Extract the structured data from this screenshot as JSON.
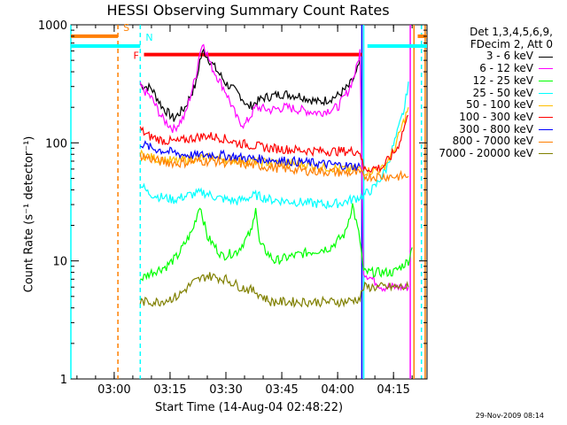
{
  "chart_data": {
    "type": "line",
    "title": "HESSI Observing Summary Count Rates",
    "xlabel": "Start Time (14-Aug-04 02:48:22)",
    "ylabel": "Count Rate (s⁻¹ detector⁻¹)",
    "y_scale": "log",
    "ylim": [
      1,
      1000
    ],
    "y_ticks": [
      "1",
      "10",
      "100",
      "1000"
    ],
    "xlim": [
      "02:48:22",
      "04:24:00"
    ],
    "x_ticks": [
      "03:00",
      "03:15",
      "03:30",
      "03:45",
      "04:00",
      "04:15"
    ],
    "legend_header": [
      "Det 1,3,4,5,6,9,",
      "FDecim 2, Att 0"
    ],
    "legend_position": "right",
    "timestamp": "29-Nov-2009 08:14",
    "flags": [
      {
        "label": "S",
        "color": "#ff7f00",
        "segments": [
          [
            "02:48:22",
            "03:01:00"
          ],
          [
            "04:21:30",
            "04:24:00"
          ]
        ],
        "y": 800
      },
      {
        "label": "N",
        "color": "#00ffff",
        "segments": [
          [
            "02:48:22",
            "03:07:00"
          ],
          [
            "04:08:00",
            "04:24:00"
          ]
        ],
        "y": 660
      },
      {
        "label": "F",
        "color": "#ff0000",
        "segments": [
          [
            "03:08:00",
            "04:06:30"
          ]
        ],
        "y": 560
      }
    ],
    "vlines": [
      {
        "t": "02:48:22",
        "color": "#00ffff",
        "style": "solid"
      },
      {
        "t": "03:01:00",
        "color": "#ff7f00",
        "style": "dashed"
      },
      {
        "t": "03:07:00",
        "color": "#00ffff",
        "style": "dashed"
      },
      {
        "t": "04:06:30",
        "color": "#0000ff",
        "style": "solid"
      },
      {
        "t": "04:07:00",
        "color": "#00ffff",
        "style": "solid"
      },
      {
        "t": "04:19:30",
        "color": "#ff00ff",
        "style": "solid"
      },
      {
        "t": "04:20:30",
        "color": "#ff7f00",
        "style": "solid"
      },
      {
        "t": "04:22:30",
        "color": "#00ffff",
        "style": "dashed"
      },
      {
        "t": "04:23:30",
        "color": "#ff7f00",
        "style": "solid"
      }
    ],
    "series": [
      {
        "name": "3 - 6 keV",
        "color": "#000000",
        "points": [
          [
            "03:07",
            "310"
          ],
          [
            "03:10",
            "290"
          ],
          [
            "03:13",
            "200"
          ],
          [
            "03:16",
            "160"
          ],
          [
            "03:19",
            "200"
          ],
          [
            "03:22",
            "320"
          ],
          [
            "03:23",
            "500"
          ],
          [
            "03:24",
            "600"
          ],
          [
            "03:26",
            "480"
          ],
          [
            "03:30",
            "320"
          ],
          [
            "03:34",
            "250"
          ],
          [
            "03:36",
            "200"
          ],
          [
            "03:40",
            "240"
          ],
          [
            "03:45",
            "260"
          ],
          [
            "03:50",
            "250"
          ],
          [
            "03:55",
            "220"
          ],
          [
            "04:00",
            "250"
          ],
          [
            "04:03",
            "300"
          ],
          [
            "04:05",
            "380"
          ],
          [
            "04:06",
            "500"
          ]
        ]
      },
      {
        "name": "6 - 12 keV",
        "color": "#ff00ff",
        "points": [
          [
            "03:07",
            "300"
          ],
          [
            "03:10",
            "240"
          ],
          [
            "03:13",
            "160"
          ],
          [
            "03:16",
            "130"
          ],
          [
            "03:19",
            "170"
          ],
          [
            "03:22",
            "380"
          ],
          [
            "03:23",
            "600"
          ],
          [
            "03:24",
            "700"
          ],
          [
            "03:26",
            "450"
          ],
          [
            "03:30",
            "270"
          ],
          [
            "03:33",
            "160"
          ],
          [
            "03:35",
            "140"
          ],
          [
            "03:38",
            "200"
          ],
          [
            "03:42",
            "190"
          ],
          [
            "03:46",
            "200"
          ],
          [
            "03:50",
            "190"
          ],
          [
            "03:55",
            "180"
          ],
          [
            "04:00",
            "200"
          ],
          [
            "04:03",
            "280"
          ],
          [
            "04:05",
            "420"
          ],
          [
            "04:06",
            "600"
          ],
          [
            "04:07",
            "8"
          ],
          [
            "04:12",
            "6"
          ],
          [
            "04:19",
            "6"
          ]
        ]
      },
      {
        "name": "12 - 25 keV",
        "color": "#00ff00",
        "points": [
          [
            "03:07",
            "7"
          ],
          [
            "03:10",
            "8"
          ],
          [
            "03:14",
            "9"
          ],
          [
            "03:17",
            "11"
          ],
          [
            "03:21",
            "18"
          ],
          [
            "03:23",
            "30"
          ],
          [
            "03:25",
            "16"
          ],
          [
            "03:29",
            "11"
          ],
          [
            "03:33",
            "12"
          ],
          [
            "03:37",
            "18"
          ],
          [
            "03:38",
            "30"
          ],
          [
            "03:39",
            "14"
          ],
          [
            "03:43",
            "10"
          ],
          [
            "03:48",
            "11"
          ],
          [
            "03:53",
            "12"
          ],
          [
            "03:58",
            "13"
          ],
          [
            "04:02",
            "17"
          ],
          [
            "04:04",
            "30"
          ],
          [
            "04:06",
            "15"
          ],
          [
            "04:07",
            "8"
          ],
          [
            "04:15",
            "8"
          ],
          [
            "04:19",
            "10"
          ],
          [
            "04:20",
            "13"
          ]
        ]
      },
      {
        "name": "25 - 50 keV",
        "color": "#00ffff",
        "points": [
          [
            "03:07",
            "45"
          ],
          [
            "03:09",
            "38"
          ],
          [
            "03:12",
            "35"
          ],
          [
            "03:16",
            "33"
          ],
          [
            "03:20",
            "36"
          ],
          [
            "03:24",
            "38"
          ],
          [
            "03:28",
            "34"
          ],
          [
            "03:33",
            "32"
          ],
          [
            "03:38",
            "36"
          ],
          [
            "03:42",
            "33"
          ],
          [
            "03:47",
            "32"
          ],
          [
            "03:52",
            "31"
          ],
          [
            "03:57",
            "30"
          ],
          [
            "04:01",
            "31"
          ],
          [
            "04:05",
            "34"
          ],
          [
            "04:07",
            "36"
          ],
          [
            "04:10",
            "42"
          ],
          [
            "04:13",
            "60"
          ],
          [
            "04:16",
            "120"
          ],
          [
            "04:18",
            "200"
          ],
          [
            "04:19",
            "330"
          ]
        ]
      },
      {
        "name": "50 - 100 keV",
        "color": "#ffbf00",
        "points": [
          [
            "03:07",
            "80"
          ],
          [
            "03:12",
            "72"
          ],
          [
            "03:17",
            "70"
          ],
          [
            "03:22",
            "74"
          ],
          [
            "03:27",
            "75"
          ],
          [
            "03:32",
            "72"
          ],
          [
            "03:37",
            "70"
          ],
          [
            "03:42",
            "68"
          ],
          [
            "03:47",
            "67"
          ],
          [
            "03:52",
            "65"
          ],
          [
            "03:57",
            "62"
          ],
          [
            "04:02",
            "60"
          ],
          [
            "04:06",
            "60"
          ],
          [
            "04:07",
            "57"
          ],
          [
            "04:12",
            "60"
          ],
          [
            "04:15",
            "85"
          ],
          [
            "04:18",
            "160"
          ],
          [
            "04:19",
            "200"
          ]
        ]
      },
      {
        "name": "100 - 300 keV",
        "color": "#ff0000",
        "points": [
          [
            "03:07",
            "130"
          ],
          [
            "03:09",
            "115"
          ],
          [
            "03:13",
            "105"
          ],
          [
            "03:17",
            "102"
          ],
          [
            "03:21",
            "110"
          ],
          [
            "03:25",
            "115"
          ],
          [
            "03:29",
            "110"
          ],
          [
            "03:33",
            "100"
          ],
          [
            "03:37",
            "95"
          ],
          [
            "03:42",
            "90"
          ],
          [
            "03:47",
            "88"
          ],
          [
            "03:52",
            "86"
          ],
          [
            "03:57",
            "85"
          ],
          [
            "04:02",
            "85"
          ],
          [
            "04:06",
            "85"
          ],
          [
            "04:07",
            "60"
          ],
          [
            "04:12",
            "62"
          ],
          [
            "04:16",
            "90"
          ],
          [
            "04:18",
            "140"
          ],
          [
            "04:19",
            "170"
          ]
        ]
      },
      {
        "name": "300 - 800 keV",
        "color": "#0000ff",
        "points": [
          [
            "03:07",
            "100"
          ],
          [
            "03:10",
            "90"
          ],
          [
            "03:14",
            "85"
          ],
          [
            "03:18",
            "80"
          ],
          [
            "03:22",
            "78"
          ],
          [
            "03:26",
            "80"
          ],
          [
            "03:30",
            "78"
          ],
          [
            "03:34",
            "75"
          ],
          [
            "03:38",
            "73"
          ],
          [
            "03:42",
            "72"
          ],
          [
            "03:47",
            "70"
          ],
          [
            "03:52",
            "68"
          ],
          [
            "03:57",
            "66"
          ],
          [
            "04:02",
            "64"
          ],
          [
            "04:06",
            "63"
          ]
        ]
      },
      {
        "name": "800 - 7000 keV",
        "color": "#ff7f00",
        "points": [
          [
            "03:07",
            "78"
          ],
          [
            "03:12",
            "70"
          ],
          [
            "03:17",
            "67"
          ],
          [
            "03:22",
            "70"
          ],
          [
            "03:27",
            "70"
          ],
          [
            "03:32",
            "67"
          ],
          [
            "03:37",
            "65"
          ],
          [
            "03:42",
            "62"
          ],
          [
            "03:47",
            "60"
          ],
          [
            "03:52",
            "58"
          ],
          [
            "03:57",
            "57"
          ],
          [
            "04:02",
            "56"
          ],
          [
            "04:06",
            "55"
          ],
          [
            "04:07",
            "52"
          ],
          [
            "04:13",
            "52"
          ],
          [
            "04:19",
            "52"
          ]
        ]
      },
      {
        "name": "7000 - 20000 keV",
        "color": "#808000",
        "points": [
          [
            "03:07",
            "4.5"
          ],
          [
            "03:12",
            "4.5"
          ],
          [
            "03:17",
            "5"
          ],
          [
            "03:21",
            "6.5"
          ],
          [
            "03:25",
            "7.5"
          ],
          [
            "03:30",
            "7"
          ],
          [
            "03:34",
            "6"
          ],
          [
            "03:38",
            "5.5"
          ],
          [
            "03:42",
            "4.5"
          ],
          [
            "03:47",
            "4.5"
          ],
          [
            "03:52",
            "4.5"
          ],
          [
            "03:57",
            "4.5"
          ],
          [
            "04:02",
            "4.5"
          ],
          [
            "04:06",
            "4.8"
          ],
          [
            "04:07",
            "6"
          ],
          [
            "04:12",
            "6"
          ],
          [
            "04:19",
            "6"
          ]
        ]
      }
    ]
  }
}
